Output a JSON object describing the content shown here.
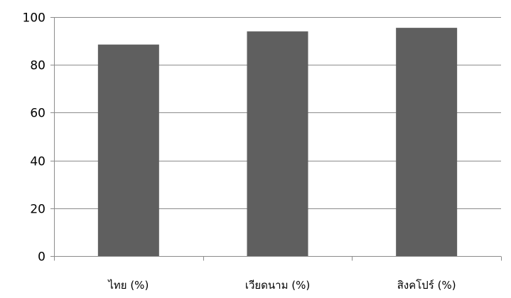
{
  "chart_data": {
    "type": "bar",
    "categories": [
      "ไทย (%)",
      "เวียดนาม (%)",
      "สิงคโปร์ (%)"
    ],
    "values": [
      88.5,
      94,
      95.5
    ],
    "ylim": [
      0,
      100
    ],
    "yticks": [
      "0",
      "20",
      "40",
      "60",
      "80",
      "100"
    ],
    "grid": true,
    "legend": "none",
    "bar_color": "#5f5f5f",
    "title": "",
    "xlabel": "",
    "ylabel": ""
  }
}
